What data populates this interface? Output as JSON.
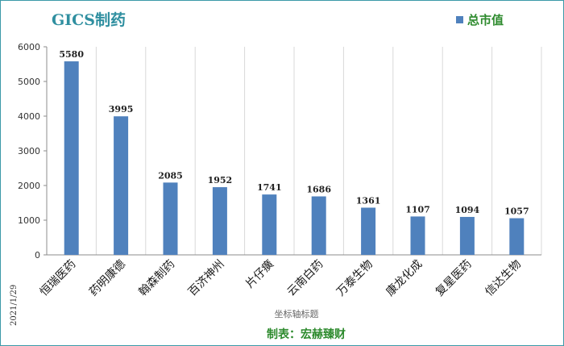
{
  "title": "GICS制药",
  "legend": {
    "label": "总市值",
    "color": "#4f81bd"
  },
  "date_label": "2021/1/29",
  "footer": "制表：宏赫臻财",
  "chart_data": {
    "type": "bar",
    "title": "GICS制药",
    "xlabel": "坐标轴标题",
    "ylabel": "",
    "ylim": [
      0,
      6000
    ],
    "yticks": [
      0,
      1000,
      2000,
      3000,
      4000,
      5000,
      6000
    ],
    "grid": "vertical",
    "legend_position": "top-right",
    "categories": [
      "恒瑞医药",
      "药明康德",
      "翰森制药",
      "百济神州",
      "片仔癀",
      "云南白药",
      "万泰生物",
      "康龙化成",
      "复星医药",
      "信达生物"
    ],
    "series": [
      {
        "name": "总市值",
        "color": "#4f81bd",
        "values": [
          5580,
          3995,
          2085,
          1952,
          1741,
          1686,
          1361,
          1107,
          1094,
          1057
        ]
      }
    ]
  }
}
